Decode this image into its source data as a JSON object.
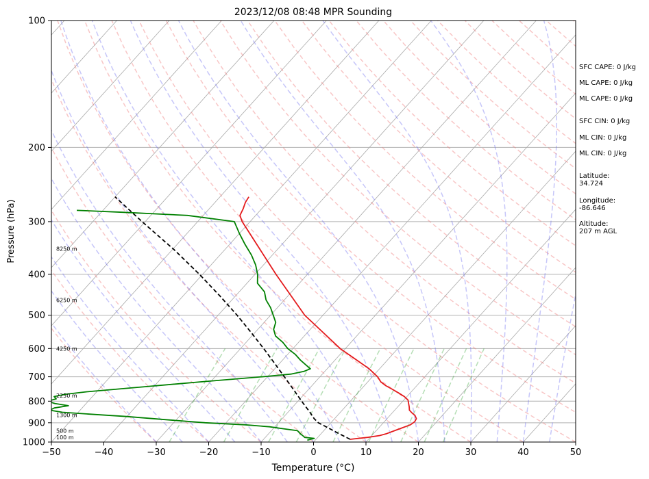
{
  "chart_data": {
    "type": "line",
    "title": "2023/12/08 08:48 MPR Sounding",
    "xlabel": "Temperature (°C)",
    "ylabel": "Pressure (hPa)",
    "xlim": [
      -50,
      50
    ],
    "ylim": [
      1000,
      100
    ],
    "y_scale": "log",
    "grid": true,
    "x_ticks": [
      -50,
      -40,
      -30,
      -20,
      -10,
      0,
      10,
      20,
      30,
      40,
      50
    ],
    "y_ticks": [
      100,
      200,
      300,
      400,
      500,
      600,
      700,
      800,
      900,
      1000
    ],
    "series": [
      {
        "role": "temperature",
        "color": "#e41a1c",
        "pressure": [
          985,
          975,
          965,
          955,
          940,
          925,
          910,
          895,
          880,
          865,
          852,
          840,
          825,
          810,
          795,
          780,
          765,
          750,
          735,
          720,
          700,
          685,
          670,
          600,
          500,
          400,
          300,
          290,
          280,
          270,
          262
        ],
        "values": [
          6.5,
          9.5,
          11.5,
          12.5,
          13.5,
          14.5,
          15.5,
          15.8,
          15.6,
          14.8,
          13.7,
          12.8,
          12.2,
          11.5,
          10.8,
          9.5,
          7.8,
          6.0,
          4.1,
          2.5,
          1.0,
          -0.5,
          -2.0,
          -11.0,
          -23.5,
          -36.0,
          -51.5,
          -53.0,
          -53.5,
          -54.2,
          -54.5
        ]
      },
      {
        "role": "dewpoint",
        "color": "#008000",
        "pressure": [
          990,
          980,
          975,
          970,
          955,
          940,
          930,
          920,
          910,
          900,
          885,
          870,
          860,
          850,
          840,
          830,
          820,
          810,
          800,
          790,
          780,
          770,
          760,
          740,
          720,
          700,
          690,
          680,
          670,
          660,
          640,
          620,
          600,
          580,
          560,
          540,
          520,
          500,
          480,
          460,
          440,
          420,
          400,
          380,
          360,
          340,
          320,
          300,
          290,
          285,
          282
        ],
        "values": [
          -1.5,
          -0.5,
          -2.5,
          -2.8,
          -4.0,
          -5.0,
          -8.0,
          -11.0,
          -16.0,
          -24.0,
          -32.0,
          -40.0,
          -46.5,
          -53.0,
          -55.8,
          -55.3,
          -53.0,
          -56.0,
          -57.8,
          -56.5,
          -57.3,
          -55.5,
          -52.0,
          -42.0,
          -32.0,
          -21.0,
          -16.0,
          -14.0,
          -13.2,
          -14.3,
          -16.5,
          -18.5,
          -21.0,
          -23.0,
          -25.5,
          -27.0,
          -27.8,
          -29.5,
          -31.3,
          -33.5,
          -35.2,
          -38.0,
          -39.5,
          -41.5,
          -44.0,
          -47.0,
          -50.0,
          -53.0,
          -63.0,
          -76.0,
          -85.0
        ]
      },
      {
        "role": "parcel",
        "color": "#000000",
        "pressure": [
          985,
          950,
          925,
          900,
          880,
          850,
          800,
          750,
          700,
          650,
          600,
          550,
          500,
          450,
          400,
          350,
          300,
          262
        ],
        "values": [
          6.5,
          2.9,
          0.3,
          -2.4,
          -3.9,
          -5.8,
          -9.3,
          -12.9,
          -16.8,
          -21.0,
          -25.6,
          -30.7,
          -36.4,
          -43.0,
          -50.6,
          -59.6,
          -70.6,
          -80.0
        ]
      }
    ],
    "height_labels": [
      {
        "text": "100 m",
        "pressure": 974
      },
      {
        "text": "500 m",
        "pressure": 940
      },
      {
        "text": "1300 m",
        "pressure": 863
      },
      {
        "text": "2250 m",
        "pressure": 775
      },
      {
        "text": "4250 m",
        "pressure": 600
      },
      {
        "text": "6250 m",
        "pressure": 460
      },
      {
        "text": "8250 m",
        "pressure": 348
      }
    ]
  },
  "side_panel": {
    "sfc_cape": "SFC CAPE: 0 J/kg",
    "ml_cape_1": "ML CAPE: 0 J/kg",
    "ml_cape_2": "ML CAPE: 0 J/kg",
    "sfc_cin": "SFC CIN: 0 J/kg",
    "ml_cin_1": "ML CIN: 0 J/kg",
    "ml_cin_2": "ML CIN: 0 J/kg",
    "latitude": "Latitude:\n34.724",
    "longitude": "Longitude:\n-86.646",
    "altitude": "Altitude:\n207 m AGL"
  }
}
